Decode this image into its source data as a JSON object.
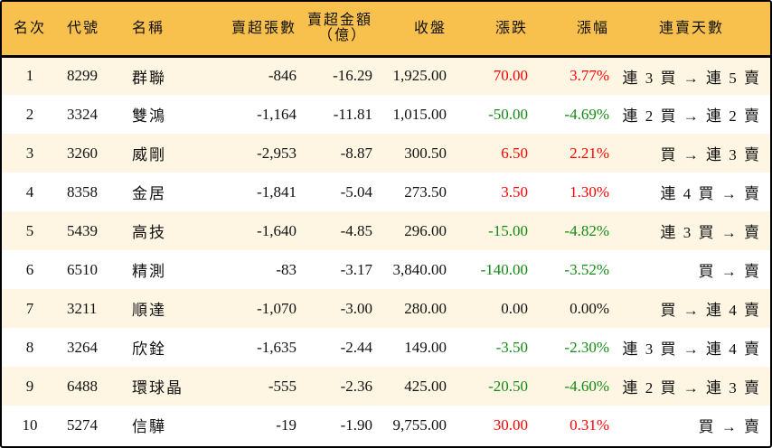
{
  "colors": {
    "header_bg": "#F8C14E",
    "row_alt": "#FEF6E3",
    "up": "#ff0000",
    "down": "#138a13"
  },
  "headers": [
    "名次",
    "代號",
    "名稱",
    "賣超張數",
    "賣超金額\n（億）",
    "收盤",
    "漲跌",
    "漲幅",
    "連賣天數"
  ],
  "header_amount_line1": "賣超金額",
  "header_amount_line2": "（億）",
  "rows": [
    {
      "rank": "1",
      "code": "8299",
      "name": "群聯",
      "net_sell": "-846",
      "amount": "-16.29",
      "close": "1,925.00",
      "change": "70.00",
      "pct": "3.77%",
      "dir": "up",
      "streak": "連 3 買 → 連 5 賣"
    },
    {
      "rank": "2",
      "code": "3324",
      "name": "雙鴻",
      "net_sell": "-1,164",
      "amount": "-11.81",
      "close": "1,015.00",
      "change": "-50.00",
      "pct": "-4.69%",
      "dir": "down",
      "streak": "連 2 買 → 連 2 賣"
    },
    {
      "rank": "3",
      "code": "3260",
      "name": "威剛",
      "net_sell": "-2,953",
      "amount": "-8.87",
      "close": "300.50",
      "change": "6.50",
      "pct": "2.21%",
      "dir": "up",
      "streak": "買 → 連 3 賣"
    },
    {
      "rank": "4",
      "code": "8358",
      "name": "金居",
      "net_sell": "-1,841",
      "amount": "-5.04",
      "close": "273.50",
      "change": "3.50",
      "pct": "1.30%",
      "dir": "up",
      "streak": "連 4 買 → 賣"
    },
    {
      "rank": "5",
      "code": "5439",
      "name": "高技",
      "net_sell": "-1,640",
      "amount": "-4.85",
      "close": "296.00",
      "change": "-15.00",
      "pct": "-4.82%",
      "dir": "down",
      "streak": "連 3 買 → 賣"
    },
    {
      "rank": "6",
      "code": "6510",
      "name": "精測",
      "net_sell": "-83",
      "amount": "-3.17",
      "close": "3,840.00",
      "change": "-140.00",
      "pct": "-3.52%",
      "dir": "down",
      "streak": "買 → 賣"
    },
    {
      "rank": "7",
      "code": "3211",
      "name": "順達",
      "net_sell": "-1,070",
      "amount": "-3.00",
      "close": "280.00",
      "change": "0.00",
      "pct": "0.00%",
      "dir": "flat",
      "streak": "買 → 連 4 賣"
    },
    {
      "rank": "8",
      "code": "3264",
      "name": "欣銓",
      "net_sell": "-1,635",
      "amount": "-2.44",
      "close": "149.00",
      "change": "-3.50",
      "pct": "-2.30%",
      "dir": "down",
      "streak": "連 3 買 → 連 4 賣"
    },
    {
      "rank": "9",
      "code": "6488",
      "name": "環球晶",
      "net_sell": "-555",
      "amount": "-2.36",
      "close": "425.00",
      "change": "-20.50",
      "pct": "-4.60%",
      "dir": "down",
      "streak": "連 2 買 → 連 3 賣"
    },
    {
      "rank": "10",
      "code": "5274",
      "name": "信驊",
      "net_sell": "-19",
      "amount": "-1.90",
      "close": "9,755.00",
      "change": "30.00",
      "pct": "0.31%",
      "dir": "up",
      "streak": "買 → 賣"
    }
  ]
}
